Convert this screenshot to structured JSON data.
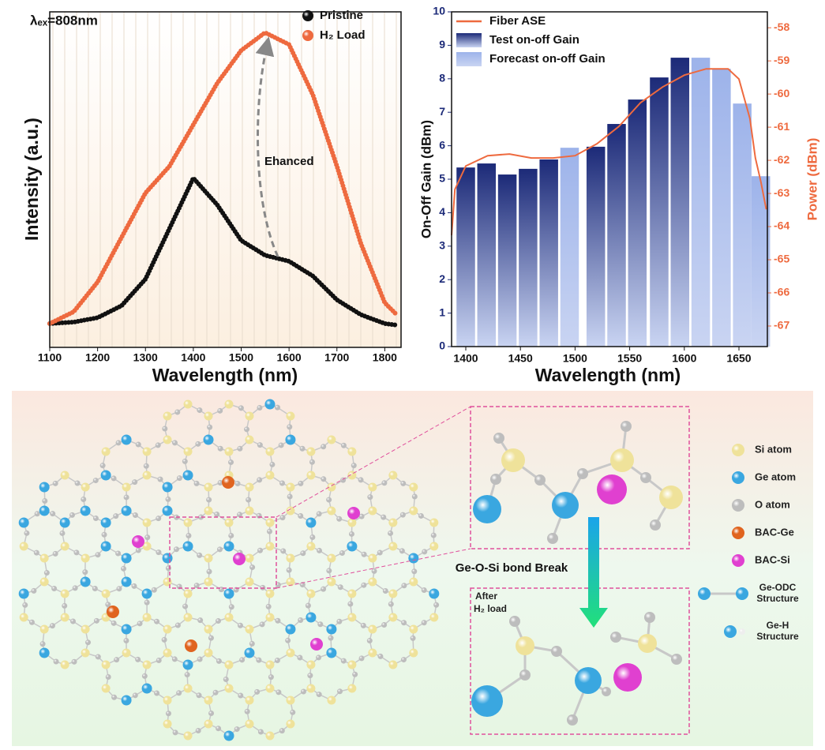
{
  "chart_data": [
    {
      "type": "line",
      "xlabel": "Wavelength (nm)",
      "ylabel": "Intensity (a.u.)",
      "annotations": [
        "λₑₓ=808nm",
        "Ehanced"
      ],
      "x": [
        1100,
        1150,
        1200,
        1250,
        1300,
        1350,
        1400,
        1450,
        1500,
        1550,
        1600,
        1650,
        1700,
        1750,
        1800,
        1825
      ],
      "series": [
        {
          "name": "Pristine",
          "color": "#111111",
          "values": [
            0.01,
            0.015,
            0.03,
            0.07,
            0.16,
            0.33,
            0.5,
            0.41,
            0.29,
            0.24,
            0.22,
            0.17,
            0.09,
            0.04,
            0.01,
            0.005
          ]
        },
        {
          "name": "H₂ Load",
          "color": "#ee6a3f",
          "values": [
            0.01,
            0.05,
            0.15,
            0.3,
            0.45,
            0.54,
            0.68,
            0.82,
            0.93,
            0.99,
            0.95,
            0.78,
            0.54,
            0.28,
            0.08,
            0.04
          ]
        }
      ],
      "xlim": [
        1100,
        1834
      ],
      "xticks": [
        1100,
        1200,
        1300,
        1400,
        1500,
        1600,
        1700,
        1800
      ],
      "ylim": [
        -0.07,
        1.06
      ],
      "legend": "upper right"
    },
    {
      "type": "bar",
      "xlabel": "Wavelength (nm)",
      "ylabel": "On-Off Gain (dBm)",
      "y2label": "Power (dBm)",
      "x": [
        1400,
        1419,
        1438,
        1457,
        1476,
        1495,
        1519,
        1538,
        1557,
        1577,
        1596,
        1615,
        1634,
        1653,
        1670
      ],
      "series": [
        {
          "name": "Fiber ASE",
          "color": "#ee6a3f",
          "type": "line",
          "axis": "y2",
          "x": [
            1387,
            1390,
            1400,
            1420,
            1440,
            1460,
            1480,
            1500,
            1520,
            1540,
            1560,
            1580,
            1600,
            1620,
            1640,
            1650,
            1660,
            1665,
            1670,
            1675
          ],
          "values": [
            -64.26,
            -62.88,
            -62.17,
            -61.86,
            -61.81,
            -61.93,
            -61.93,
            -61.86,
            -61.5,
            -60.98,
            -60.26,
            -59.79,
            -59.43,
            -59.24,
            -59.24,
            -59.55,
            -60.74,
            -61.93,
            -62.64,
            -63.48
          ]
        },
        {
          "name": "Test on-off Gain",
          "color": "#1c2a78",
          "values": [
            5.35,
            5.47,
            5.14,
            5.31,
            5.59,
            null,
            5.97,
            6.65,
            7.38,
            8.04,
            8.63,
            null,
            null,
            null,
            null
          ]
        },
        {
          "name": "Forecast on-off Gain",
          "color": "#9db3ea",
          "values": [
            null,
            null,
            null,
            null,
            null,
            5.94,
            null,
            null,
            null,
            null,
            null,
            8.63,
            8.3,
            7.26,
            5.09
          ]
        }
      ],
      "xlim": [
        1387,
        1676
      ],
      "xticks": [
        1400,
        1450,
        1500,
        1550,
        1600,
        1650
      ],
      "ylim": [
        0,
        10
      ],
      "yticks": [
        0,
        1,
        2,
        3,
        4,
        5,
        6,
        7,
        8,
        9,
        10
      ],
      "y2lim": [
        -67.62,
        -57.52
      ],
      "y2ticks": [
        -58,
        -59,
        -60,
        -61,
        -62,
        -63,
        -64,
        -65,
        -66,
        -67
      ],
      "legend": "upper left"
    }
  ],
  "diagram": {
    "legend": [
      {
        "label": "Si atom",
        "color": "#efe29a"
      },
      {
        "label": "Ge atom",
        "color": "#3aa7e0"
      },
      {
        "label": "O atom",
        "color": "#bdbdbd"
      },
      {
        "label": "BAC-Ge",
        "color": "#e0641f"
      },
      {
        "label": "BAC-Si",
        "color": "#e040d0"
      }
    ],
    "bond_break": "Ge-O-Si bond Break",
    "after_label": [
      "After",
      "H₂ load"
    ],
    "structures": [
      [
        "Ge-ODC",
        "Structure"
      ],
      [
        "Ge-H",
        "Structure"
      ]
    ]
  }
}
